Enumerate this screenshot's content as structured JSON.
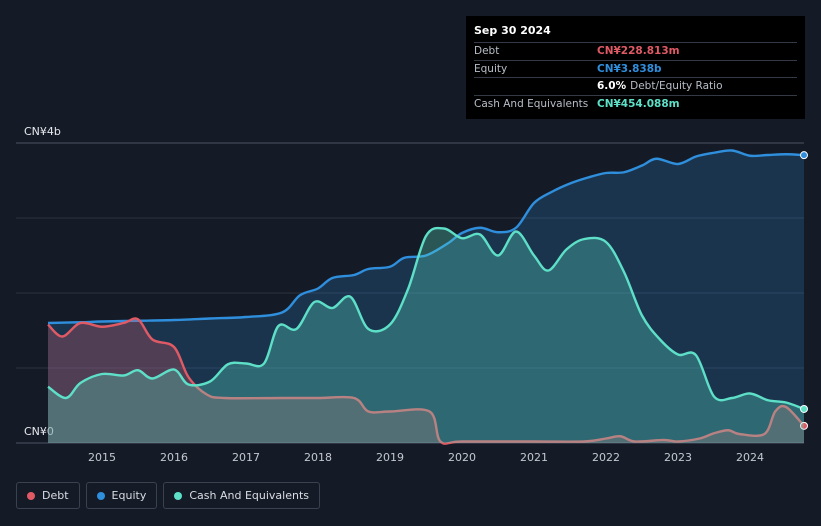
{
  "chart_data": {
    "type": "area",
    "y_unit_label_top": "CN¥4b",
    "y_unit_label_bottom": "CN¥0",
    "ylim": [
      0,
      4.0
    ],
    "xlim": [
      2014.25,
      2024.75
    ],
    "x_ticks": [
      "2015",
      "2016",
      "2017",
      "2018",
      "2019",
      "2020",
      "2021",
      "2022",
      "2023",
      "2024"
    ],
    "grid": true,
    "legend_position": "bottom-left",
    "series": [
      {
        "name": "Debt",
        "color": "#e05a65",
        "points": [
          [
            2014.25,
            1.58
          ],
          [
            2014.45,
            1.42
          ],
          [
            2014.7,
            1.6
          ],
          [
            2015.0,
            1.55
          ],
          [
            2015.3,
            1.6
          ],
          [
            2015.5,
            1.65
          ],
          [
            2015.7,
            1.38
          ],
          [
            2016.0,
            1.28
          ],
          [
            2016.2,
            0.88
          ],
          [
            2016.45,
            0.65
          ],
          [
            2016.7,
            0.6
          ],
          [
            2017.5,
            0.6
          ],
          [
            2018.0,
            0.6
          ],
          [
            2018.5,
            0.6
          ],
          [
            2018.7,
            0.42
          ],
          [
            2019.0,
            0.42
          ],
          [
            2019.55,
            0.42
          ],
          [
            2019.7,
            0.02
          ],
          [
            2020.0,
            0.02
          ],
          [
            2021.0,
            0.02
          ],
          [
            2021.7,
            0.02
          ],
          [
            2022.0,
            0.06
          ],
          [
            2022.2,
            0.09
          ],
          [
            2022.4,
            0.02
          ],
          [
            2022.8,
            0.04
          ],
          [
            2023.0,
            0.02
          ],
          [
            2023.3,
            0.06
          ],
          [
            2023.5,
            0.13
          ],
          [
            2023.7,
            0.17
          ],
          [
            2023.85,
            0.12
          ],
          [
            2024.2,
            0.12
          ],
          [
            2024.35,
            0.42
          ],
          [
            2024.5,
            0.48
          ],
          [
            2024.75,
            0.229
          ]
        ]
      },
      {
        "name": "Equity",
        "color": "#2f8fdd",
        "points": [
          [
            2014.25,
            1.6
          ],
          [
            2014.7,
            1.61
          ],
          [
            2015.0,
            1.62
          ],
          [
            2015.5,
            1.63
          ],
          [
            2016.0,
            1.64
          ],
          [
            2016.5,
            1.66
          ],
          [
            2017.0,
            1.68
          ],
          [
            2017.5,
            1.74
          ],
          [
            2017.75,
            1.97
          ],
          [
            2018.0,
            2.06
          ],
          [
            2018.2,
            2.2
          ],
          [
            2018.5,
            2.24
          ],
          [
            2018.7,
            2.32
          ],
          [
            2019.0,
            2.35
          ],
          [
            2019.2,
            2.47
          ],
          [
            2019.5,
            2.5
          ],
          [
            2019.8,
            2.66
          ],
          [
            2020.0,
            2.8
          ],
          [
            2020.25,
            2.87
          ],
          [
            2020.5,
            2.81
          ],
          [
            2020.75,
            2.87
          ],
          [
            2021.0,
            3.2
          ],
          [
            2021.25,
            3.35
          ],
          [
            2021.5,
            3.46
          ],
          [
            2021.75,
            3.54
          ],
          [
            2022.0,
            3.6
          ],
          [
            2022.25,
            3.61
          ],
          [
            2022.5,
            3.7
          ],
          [
            2022.7,
            3.79
          ],
          [
            2023.0,
            3.72
          ],
          [
            2023.25,
            3.82
          ],
          [
            2023.5,
            3.87
          ],
          [
            2023.75,
            3.9
          ],
          [
            2024.0,
            3.83
          ],
          [
            2024.25,
            3.84
          ],
          [
            2024.5,
            3.85
          ],
          [
            2024.75,
            3.838
          ]
        ]
      },
      {
        "name": "Cash And Equivalents",
        "color": "#5ee0c8",
        "points": [
          [
            2014.25,
            0.75
          ],
          [
            2014.5,
            0.6
          ],
          [
            2014.7,
            0.8
          ],
          [
            2015.0,
            0.92
          ],
          [
            2015.3,
            0.9
          ],
          [
            2015.5,
            0.97
          ],
          [
            2015.7,
            0.86
          ],
          [
            2016.0,
            0.98
          ],
          [
            2016.2,
            0.78
          ],
          [
            2016.5,
            0.82
          ],
          [
            2016.75,
            1.05
          ],
          [
            2017.0,
            1.06
          ],
          [
            2017.25,
            1.06
          ],
          [
            2017.45,
            1.56
          ],
          [
            2017.7,
            1.52
          ],
          [
            2017.95,
            1.88
          ],
          [
            2018.2,
            1.8
          ],
          [
            2018.45,
            1.95
          ],
          [
            2018.7,
            1.52
          ],
          [
            2019.0,
            1.58
          ],
          [
            2019.25,
            2.05
          ],
          [
            2019.5,
            2.76
          ],
          [
            2019.75,
            2.86
          ],
          [
            2020.0,
            2.73
          ],
          [
            2020.25,
            2.78
          ],
          [
            2020.5,
            2.5
          ],
          [
            2020.75,
            2.82
          ],
          [
            2021.0,
            2.5
          ],
          [
            2021.2,
            2.3
          ],
          [
            2021.45,
            2.58
          ],
          [
            2021.7,
            2.72
          ],
          [
            2022.0,
            2.68
          ],
          [
            2022.25,
            2.28
          ],
          [
            2022.5,
            1.7
          ],
          [
            2022.75,
            1.38
          ],
          [
            2023.0,
            1.18
          ],
          [
            2023.25,
            1.17
          ],
          [
            2023.5,
            0.62
          ],
          [
            2023.75,
            0.6
          ],
          [
            2024.0,
            0.66
          ],
          [
            2024.25,
            0.57
          ],
          [
            2024.5,
            0.54
          ],
          [
            2024.75,
            0.454
          ]
        ]
      }
    ]
  },
  "tooltip": {
    "date": "Sep 30 2024",
    "rows": [
      {
        "label": "Debt",
        "value": "CN¥228.813m",
        "color": "#e05a65",
        "extra": ""
      },
      {
        "label": "Equity",
        "value": "CN¥3.838b",
        "color": "#2f8fdd",
        "extra": ""
      },
      {
        "label": "",
        "value": "6.0%",
        "color": "#ffffff",
        "extra": "Debt/Equity Ratio"
      },
      {
        "label": "Cash And Equivalents",
        "value": "CN¥454.088m",
        "color": "#5ee0c8",
        "extra": ""
      }
    ]
  },
  "legend": [
    {
      "label": "Debt",
      "color": "#e05a65"
    },
    {
      "label": "Equity",
      "color": "#2f8fdd"
    },
    {
      "label": "Cash And Equivalents",
      "color": "#5ee0c8"
    }
  ]
}
